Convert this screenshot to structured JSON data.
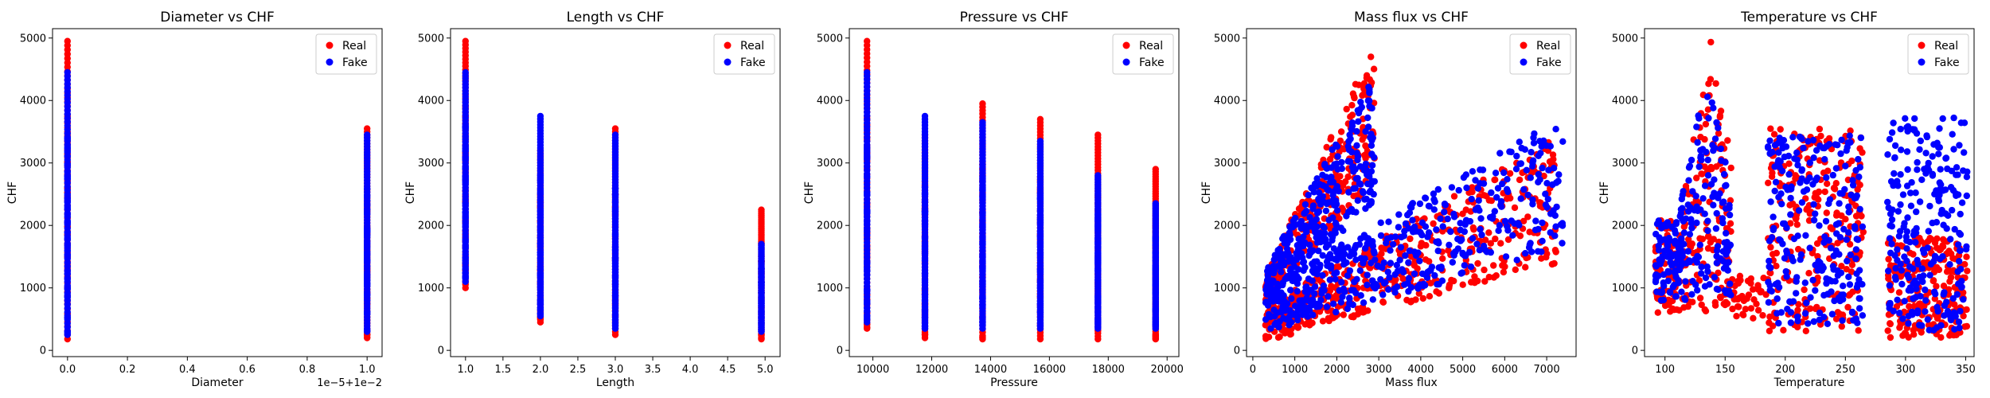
{
  "colors": {
    "real": "#ff0000",
    "fake": "#0000ff"
  },
  "chart_data": [
    {
      "type": "scatter",
      "title": "Diameter vs CHF",
      "xlabel": "Diameter",
      "ylabel": "CHF",
      "xlim": [
        -0.05,
        1.05
      ],
      "ylim": [
        -100,
        5150
      ],
      "xticks": [
        0.0,
        0.2,
        0.4,
        0.6,
        0.8,
        1.0
      ],
      "xtick_labels": [
        "0.0",
        "0.2",
        "0.4",
        "0.6",
        "0.8",
        "1.0"
      ],
      "yticks": [
        0,
        1000,
        2000,
        3000,
        4000,
        5000
      ],
      "ytick_labels": [
        "0",
        "1000",
        "2000",
        "3000",
        "4000",
        "5000"
      ],
      "offset_text": "1e−5+1e−2",
      "legend": "top-right",
      "series": [
        {
          "name": "Real",
          "color": "#ff0000",
          "strips": [
            {
              "x": 0.0,
              "ymin": 180,
              "ymax": 4950
            },
            {
              "x": 1.0,
              "ymin": 200,
              "ymax": 3550
            }
          ]
        },
        {
          "name": "Fake",
          "color": "#0000ff",
          "strips": [
            {
              "x": 0.0,
              "ymin": 250,
              "ymax": 4450
            },
            {
              "x": 1.0,
              "ymin": 300,
              "ymax": 3450
            }
          ]
        }
      ]
    },
    {
      "type": "scatter",
      "title": "Length vs CHF",
      "xlabel": "Length",
      "ylabel": "CHF",
      "xlim": [
        0.8,
        5.2
      ],
      "ylim": [
        -100,
        5150
      ],
      "xticks": [
        1.0,
        1.5,
        2.0,
        2.5,
        3.0,
        3.5,
        4.0,
        4.5,
        5.0
      ],
      "xtick_labels": [
        "1.0",
        "1.5",
        "2.0",
        "2.5",
        "3.0",
        "3.5",
        "4.0",
        "4.5",
        "5.0"
      ],
      "yticks": [
        0,
        1000,
        2000,
        3000,
        4000,
        5000
      ],
      "ytick_labels": [
        "0",
        "1000",
        "2000",
        "3000",
        "4000",
        "5000"
      ],
      "legend": "top-right",
      "series": [
        {
          "name": "Real",
          "color": "#ff0000",
          "strips": [
            {
              "x": 1.0,
              "ymin": 1000,
              "ymax": 4950
            },
            {
              "x": 2.0,
              "ymin": 450,
              "ymax": 3200
            },
            {
              "x": 3.0,
              "ymin": 250,
              "ymax": 3550
            },
            {
              "x": 4.95,
              "ymin": 180,
              "ymax": 2250
            }
          ]
        },
        {
          "name": "Fake",
          "color": "#0000ff",
          "strips": [
            {
              "x": 1.0,
              "ymin": 1100,
              "ymax": 4450
            },
            {
              "x": 2.0,
              "ymin": 550,
              "ymax": 3750
            },
            {
              "x": 3.0,
              "ymin": 350,
              "ymax": 3450
            },
            {
              "x": 4.95,
              "ymin": 300,
              "ymax": 1700
            }
          ]
        }
      ]
    },
    {
      "type": "scatter",
      "title": "Pressure vs CHF",
      "xlabel": "Pressure",
      "ylabel": "CHF",
      "xlim": [
        9200,
        20400
      ],
      "ylim": [
        -100,
        5150
      ],
      "xticks": [
        10000,
        12000,
        14000,
        16000,
        18000,
        20000
      ],
      "xtick_labels": [
        "10000",
        "12000",
        "14000",
        "16000",
        "18000",
        "20000"
      ],
      "yticks": [
        0,
        1000,
        2000,
        3000,
        4000,
        5000
      ],
      "ytick_labels": [
        "0",
        "1000",
        "2000",
        "3000",
        "4000",
        "5000"
      ],
      "legend": "top-right",
      "series": [
        {
          "name": "Real",
          "color": "#ff0000",
          "strips": [
            {
              "x": 9800,
              "ymin": 350,
              "ymax": 4950
            },
            {
              "x": 11770,
              "ymin": 200,
              "ymax": 3450
            },
            {
              "x": 13730,
              "ymin": 180,
              "ymax": 3950
            },
            {
              "x": 15690,
              "ymin": 180,
              "ymax": 3700
            },
            {
              "x": 17650,
              "ymin": 180,
              "ymax": 3450
            },
            {
              "x": 19610,
              "ymin": 180,
              "ymax": 2900
            }
          ]
        },
        {
          "name": "Fake",
          "color": "#0000ff",
          "strips": [
            {
              "x": 9800,
              "ymin": 450,
              "ymax": 4450
            },
            {
              "x": 11770,
              "ymin": 350,
              "ymax": 3750
            },
            {
              "x": 13730,
              "ymin": 350,
              "ymax": 3650
            },
            {
              "x": 15690,
              "ymin": 350,
              "ymax": 3350
            },
            {
              "x": 17650,
              "ymin": 350,
              "ymax": 2800
            },
            {
              "x": 19610,
              "ymin": 350,
              "ymax": 2350
            }
          ]
        }
      ]
    },
    {
      "type": "scatter",
      "title": "Mass flux vs CHF",
      "xlabel": "Mass flux",
      "ylabel": "CHF",
      "xlim": [
        -150,
        7700
      ],
      "ylim": [
        -100,
        5150
      ],
      "xticks": [
        0,
        1000,
        2000,
        3000,
        4000,
        5000,
        6000,
        7000
      ],
      "xtick_labels": [
        "0",
        "1000",
        "2000",
        "3000",
        "4000",
        "5000",
        "6000",
        "7000"
      ],
      "yticks": [
        0,
        1000,
        2000,
        3000,
        4000,
        5000
      ],
      "ytick_labels": [
        "0",
        "1000",
        "2000",
        "3000",
        "4000",
        "5000"
      ],
      "legend": "top-right",
      "series": [
        {
          "name": "Real",
          "color": "#ff0000",
          "bands": [
            {
              "x0": 300,
              "x1": 2900,
              "lo0": 800,
              "lo1": 2700,
              "hi0": 1200,
              "hi1": 4950,
              "n": 260
            },
            {
              "x0": 300,
              "x1": 7300,
              "lo0": 150,
              "lo1": 1400,
              "hi0": 700,
              "hi1": 3450,
              "n": 460
            }
          ]
        },
        {
          "name": "Fake",
          "color": "#0000ff",
          "bands": [
            {
              "x0": 300,
              "x1": 2900,
              "lo0": 700,
              "lo1": 2400,
              "hi0": 1300,
              "hi1": 4450,
              "n": 280
            },
            {
              "x0": 300,
              "x1": 7400,
              "lo0": 300,
              "lo1": 1600,
              "hi0": 1000,
              "hi1": 3750,
              "n": 480
            }
          ]
        }
      ]
    },
    {
      "type": "scatter",
      "title": "Temperature vs CHF",
      "xlabel": "Temperature",
      "ylabel": "CHF",
      "xlim": [
        83,
        357
      ],
      "ylim": [
        -100,
        5150
      ],
      "xticks": [
        100,
        150,
        200,
        250,
        300,
        350
      ],
      "xtick_labels": [
        "100",
        "150",
        "200",
        "250",
        "300",
        "350"
      ],
      "yticks": [
        0,
        1000,
        2000,
        3000,
        4000,
        5000
      ],
      "ytick_labels": [
        "0",
        "1000",
        "2000",
        "3000",
        "4000",
        "5000"
      ],
      "legend": "top-right",
      "series": [
        {
          "name": "Real",
          "color": "#ff0000",
          "clouds": [
            {
              "x0": 92,
              "x1": 155,
              "y0": 600,
              "y1": 4950,
              "peak": 138,
              "n": 220
            },
            {
              "x0": 155,
              "x1": 185,
              "y0": 500,
              "y1": 1200,
              "n": 40
            },
            {
              "x0": 185,
              "x1": 265,
              "y0": 300,
              "y1": 3550,
              "n": 240
            },
            {
              "x0": 285,
              "x1": 352,
              "y0": 200,
              "y1": 1800,
              "n": 220
            }
          ]
        },
        {
          "name": "Fake",
          "color": "#0000ff",
          "clouds": [
            {
              "x0": 92,
              "x1": 155,
              "y0": 800,
              "y1": 4450,
              "peak": 135,
              "n": 220
            },
            {
              "x0": 185,
              "x1": 265,
              "y0": 400,
              "y1": 3450,
              "n": 240
            },
            {
              "x0": 285,
              "x1": 352,
              "y0": 300,
              "y1": 3750,
              "n": 240
            }
          ]
        }
      ]
    }
  ]
}
